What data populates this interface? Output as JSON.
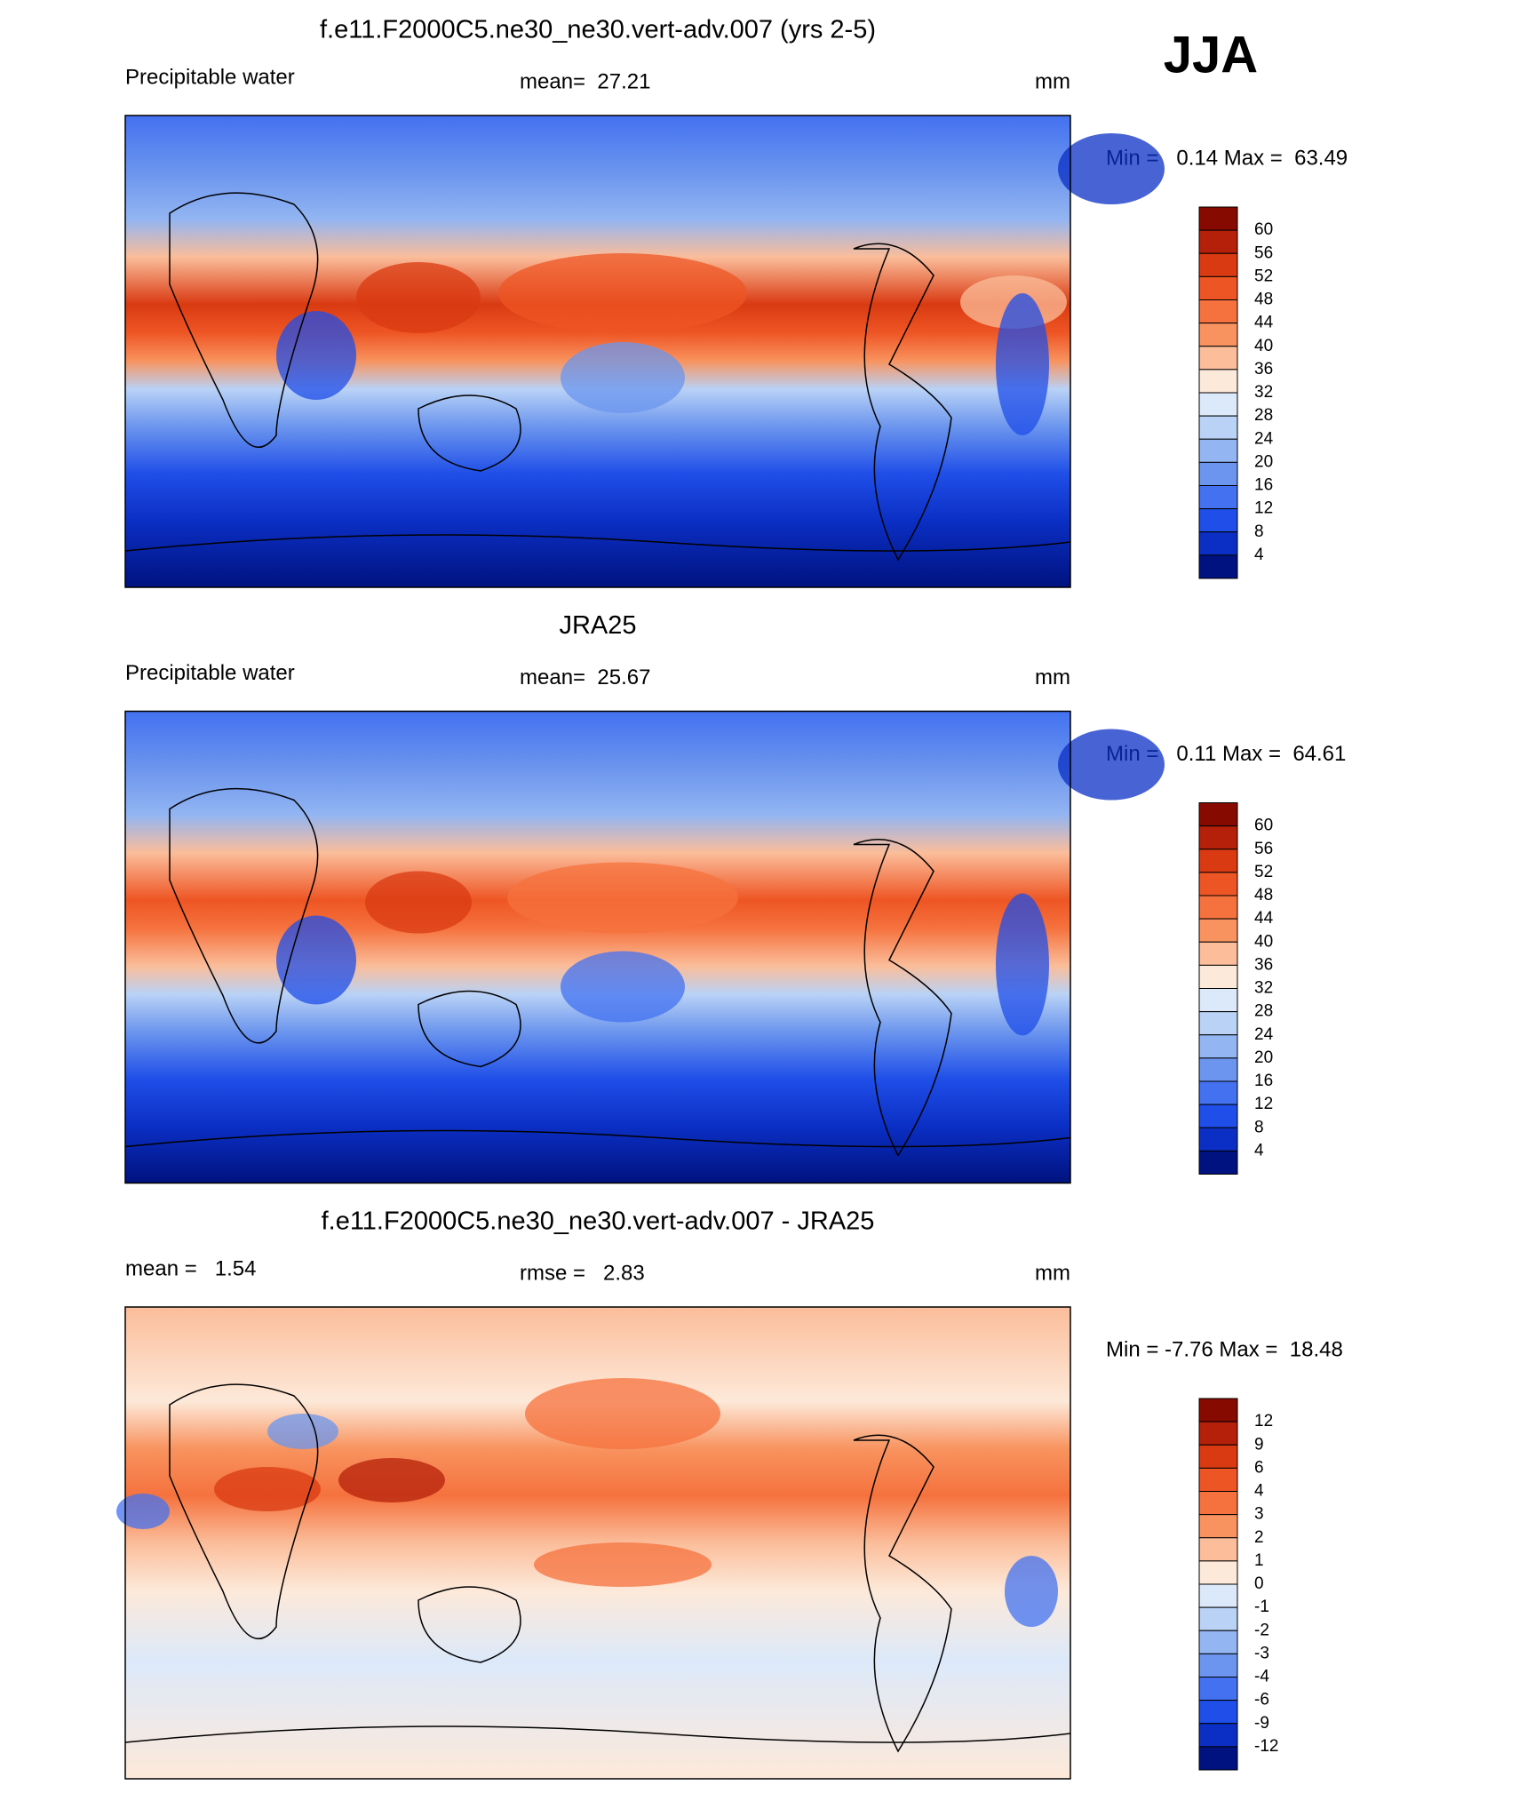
{
  "figure_title": "JJA",
  "palette": [
    "#870a00",
    "#b5200a",
    "#d93a12",
    "#ee5524",
    "#f5723e",
    "#f8935f",
    "#fbbd9a",
    "#fde9d9",
    "#dce9fa",
    "#b9d2f6",
    "#93b5f2",
    "#6b95ee",
    "#4371f0",
    "#1f4ee8",
    "#0b2fc4",
    "#00127f"
  ],
  "panels": [
    {
      "title": "f.e11.F2000C5.ne30_ne30.vert-adv.007 (yrs 2-5)",
      "left_label": "Precipitable water",
      "center_label": "mean=  27.21",
      "units": "mm",
      "range_label": "Min =   0.14 Max =  63.49",
      "colorbar_labels": [
        "60",
        "56",
        "52",
        "48",
        "44",
        "40",
        "36",
        "32",
        "28",
        "24",
        "20",
        "16",
        "12",
        "8",
        "4"
      ]
    },
    {
      "title": "JRA25",
      "left_label": "Precipitable water",
      "center_label": "mean=  25.67",
      "units": "mm",
      "range_label": "Min =   0.11 Max =  64.61",
      "colorbar_labels": [
        "60",
        "56",
        "52",
        "48",
        "44",
        "40",
        "36",
        "32",
        "28",
        "24",
        "20",
        "16",
        "12",
        "8",
        "4"
      ]
    },
    {
      "title": "f.e11.F2000C5.ne30_ne30.vert-adv.007 - JRA25",
      "left_label": "mean =   1.54",
      "center_label": "rmse =   2.83",
      "units": "mm",
      "range_label": "Min = -7.76 Max =  18.48",
      "colorbar_labels": [
        "12",
        "9",
        "6",
        "4",
        "3",
        "2",
        "1",
        "0",
        "-1",
        "-2",
        "-3",
        "-4",
        "-6",
        "-9",
        "-12"
      ]
    }
  ]
}
